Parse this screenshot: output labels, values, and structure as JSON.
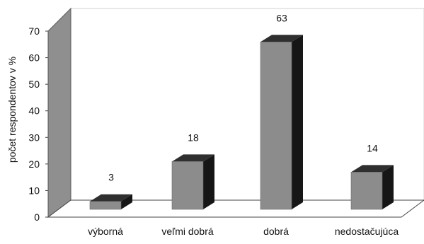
{
  "chart_data": {
    "type": "bar",
    "title": "",
    "xlabel": "",
    "ylabel": "počet respondentov v %",
    "categories": [
      "výborná",
      "veľmi dobrá",
      "dobrá",
      "nedostačujúca"
    ],
    "values": [
      3,
      18,
      63,
      14
    ],
    "data_labels": [
      "3",
      "18",
      "63",
      "14"
    ],
    "ylim": [
      0,
      70
    ],
    "yticks": [
      "0",
      "10",
      "20",
      "30",
      "40",
      "50",
      "60",
      "70"
    ],
    "ytick_values": [
      0,
      10,
      20,
      30,
      40,
      50,
      60,
      70
    ],
    "grid": false,
    "legend": "none",
    "style": "3d",
    "colors": {
      "bar_front": "#8c8c8c",
      "bar_top": "#2f2f2f",
      "bar_side": "#161616",
      "wall": "#8f8f8f",
      "wall_edge": "#5a5a5a",
      "floor": "#ffffff"
    }
  }
}
